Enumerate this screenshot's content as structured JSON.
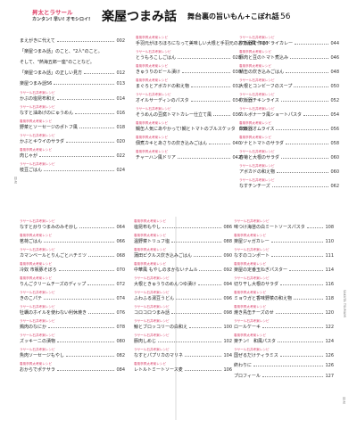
{
  "header": {
    "brand_line1": "昇太とラサール",
    "brand_line2": "カンタン! 早い! オモシロイ!",
    "title": "楽屋つまみ話",
    "subtitle": "舞台裏の旨いもん+こぼれ話",
    "page_number": "56"
  },
  "side_labels": {
    "left": "目 次",
    "right": "SAKUTA TSUMAMI",
    "right_bottom": "目 次"
  },
  "colors": {
    "accent": "#d9466f"
  },
  "columns": [
    [
      {
        "cat": "",
        "title": "まえがきに代えて",
        "page": "002"
      },
      {
        "cat": "",
        "title": "「楽屋つまみ話」のこと、\"2人\"のこと。",
        "page": "",
        "multiline": true
      },
      {
        "cat": "",
        "title": "そして、\"熱海五郎一座\"のことなど。",
        "page": "",
        "multiline": true
      },
      {
        "cat": "",
        "title": "「楽屋つまみ話」の正しい見方",
        "page": "012"
      },
      {
        "cat": "",
        "title": "楽屋つまみ話56",
        "page": "013"
      },
      {
        "cat": "ラサール石井考案レシピ",
        "title": "かぶの塩昆布和え",
        "page": "014"
      },
      {
        "cat": "ラサール石井考案レシピ",
        "title": "なすと油あげのにゅうめん",
        "page": "016"
      },
      {
        "cat": "春風亭昇太考案レシピ",
        "title": "野菜とソーセージのポトフ風",
        "page": "018"
      },
      {
        "cat": "ラサール石井考案レシピ",
        "title": "かぶとキウイのサラダ",
        "page": "020"
      },
      {
        "cat": "春風亭昇太考案レシピ",
        "title": "肉じゃが",
        "page": "022"
      },
      {
        "cat": "ラサール石井考案レシピ",
        "title": "枝豆ごはん",
        "page": "024"
      }
    ],
    [
      {
        "cat": "春風亭昇太考案レシピ",
        "title": "手羽元がほろほろになって美味しい大根と手羽元のおでん風",
        "page": "026"
      },
      {
        "cat": "ラサール石井考案レシピ",
        "title": "とうもろこしごはん",
        "page": "028"
      },
      {
        "cat": "春風亭昇太考案レシピ",
        "title": "きゅうりのビール漬け",
        "page": "030"
      },
      {
        "cat": "春風亭昇太考案レシピ",
        "title": "まぐろとアボカドの和え物",
        "page": "032"
      },
      {
        "cat": "ラサール石井考案レシピ",
        "title": "オイルサーディンのパスタ",
        "page": "034"
      },
      {
        "cat": "ラサール石井考案レシピ",
        "title": "そうめんの豆腐トマトカレー仕立て風",
        "page": "036"
      },
      {
        "cat": "春風亭昇太考案レシピ",
        "title": "鯛缶人気にあやかって!鯛とトマトのブルスケッタ",
        "page": "038"
      },
      {
        "cat": "春風亭昇太考案レシピ",
        "title": "佃煮カキとあさりの炊き込みごはん",
        "page": "040"
      },
      {
        "cat": "春風亭昇太考案レシピ",
        "title": "チャーハン風ドリア",
        "page": "042"
      }
    ],
    [
      {
        "cat": "ラサール石井考案レシピ",
        "title": "炊飯器で作るドライカレー",
        "page": "044"
      },
      {
        "cat": "春風亭昇太考案レシピ",
        "title": "豚肉と豆のトマト煮込み",
        "page": "046"
      },
      {
        "cat": "春風亭昇太考案レシピ",
        "title": "鯖缶の炊き込みごはん",
        "page": "048"
      },
      {
        "cat": "ラサール石井考案レシピ",
        "title": "大根とコンビーフのスープ",
        "page": "050"
      },
      {
        "cat": "ラサール石井考案レシピ",
        "title": "炊飯器チキンライス",
        "page": "052"
      },
      {
        "cat": "ラサール石井考案レシピ",
        "title": "カルボナーラ風ショートパスタ",
        "page": "054"
      },
      {
        "cat": "春風亭昇太考案レシピ",
        "title": "炊飯器オムライス",
        "page": "056"
      },
      {
        "cat": "春風亭昇太考案レシピ",
        "title": "ツナとトマトのサラダ",
        "page": "058"
      },
      {
        "cat": "ラサール石井考案レシピ",
        "title": "春菊と大根のサラダ",
        "page": "060"
      },
      {
        "cat": "ラサール石井考案レシピ",
        "title": "アボカドの和え物",
        "page": "060"
      },
      {
        "cat": "ラサール石井考案レシピ",
        "title": "なすチンチーズ",
        "page": "062"
      }
    ],
    [
      {
        "cat": "ラサール石井考案レシピ",
        "title": "なすと炒りつまみのみそ炒し",
        "page": "064"
      },
      {
        "cat": "春風亭昇太考案レシピ",
        "title": "茗荷ごはん",
        "page": "066"
      },
      {
        "cat": "ラサール石井考案レシピ",
        "title": "カマンベールとりんごとハチミツ",
        "page": "068"
      },
      {
        "cat": "春風亭昇太考案レシピ",
        "title": "冷奴 市販豚そぼろ",
        "page": "070"
      },
      {
        "cat": "春風亭昇太考案レシピ",
        "title": "りんごクリームチーズのディップ",
        "page": "072"
      },
      {
        "cat": "ラサール石井考案レシピ",
        "title": "きのこパテ",
        "page": "074"
      },
      {
        "cat": "ラサール石井考案レシピ",
        "title": "牡蠣のホイルを使わない利休焼き",
        "page": "076"
      },
      {
        "cat": "ラサール石井考案レシピ",
        "title": "鶏肉のなにか",
        "page": "078"
      },
      {
        "cat": "ラサール石井考案レシピ",
        "title": "ズッキーニの漬物",
        "page": "080"
      },
      {
        "cat": "ラサール石井考案レシピ",
        "title": "魚肉ソーセージもやし",
        "page": "082"
      },
      {
        "cat": "春風亭昇太考案レシピ",
        "title": "おからでポテサラ",
        "page": "084"
      }
    ],
    [
      {
        "cat": "春風亭昇太考案レシピ",
        "title": "塩昆布もやし",
        "page": "086"
      },
      {
        "cat": "春風亭昇太考案レシピ",
        "title": "温野菜トリュフ塩",
        "page": "088"
      },
      {
        "cat": "春風亭昇太考案レシピ",
        "title": "蒲田ピクルス炊き込みごはん",
        "page": "090"
      },
      {
        "cat": "春風亭昇太考案レシピ",
        "title": "中華風 もやしのまかないナムル",
        "page": "092"
      },
      {
        "cat": "ラサール石井考案レシピ",
        "title": "大根ときゅうりのめんつゆ漬け",
        "page": "094"
      },
      {
        "cat": "ラサール石井考案レシピ",
        "title": "ふわふる湯豆うどん",
        "page": "096"
      },
      {
        "cat": "ラサール石井考案レシピ",
        "title": "コロコロつまみ話",
        "page": "098"
      },
      {
        "cat": "ラサール石井考案レシピ",
        "title": "鯨とブロッコリーの白和え",
        "page": "100"
      },
      {
        "cat": "ラサール石井考案レシピ",
        "title": "豚肉しめじ",
        "page": "102"
      },
      {
        "cat": "ラサール石井考案レシピ",
        "title": "なすとパプリカのマリネ",
        "page": "104"
      },
      {
        "cat": "春風亭昇太考案レシピ",
        "title": "レトルトミートソース麦",
        "page": "106"
      }
    ],
    [
      {
        "cat": "ラサール石井考案レシピ",
        "title": "味つけ海苔の白ミートソースパスタ",
        "page": "108"
      },
      {
        "cat": "春風亭昇太考案レシピ",
        "title": "楽屋ジャガカレー",
        "page": "110"
      },
      {
        "cat": "ラサール石井考案レシピ",
        "title": "なすのコンポート",
        "page": "111"
      },
      {
        "cat": "春風亭昇太考案レシピ",
        "title": "楽屋の定番玉ねぎパスター",
        "page": "114"
      },
      {
        "cat": "ラサール石井考案レシピ",
        "title": "切り干し大根のサラダ",
        "page": "116"
      },
      {
        "cat": "春風亭昇太考案レシピ",
        "title": "ミョウガと香味野菜の和え物",
        "page": "118"
      },
      {
        "cat": "春風亭昇太考案レシピ",
        "title": "焼き鳥缶チーズのせ",
        "page": "120"
      },
      {
        "cat": "ラサール石井考案レシピ",
        "title": "ロールケーキ",
        "page": "122"
      },
      {
        "cat": "春風亭昇太考案レシピ",
        "title": "楽チン!　和風パスタ",
        "page": "124"
      },
      {
        "cat": "ラサール石井考案レシピ",
        "title": "国ぜるだけティラミス",
        "page": "126"
      },
      {
        "cat": "",
        "title": "終わりに",
        "page": "126"
      },
      {
        "cat": "",
        "title": "プロフィール",
        "page": "127"
      }
    ]
  ]
}
